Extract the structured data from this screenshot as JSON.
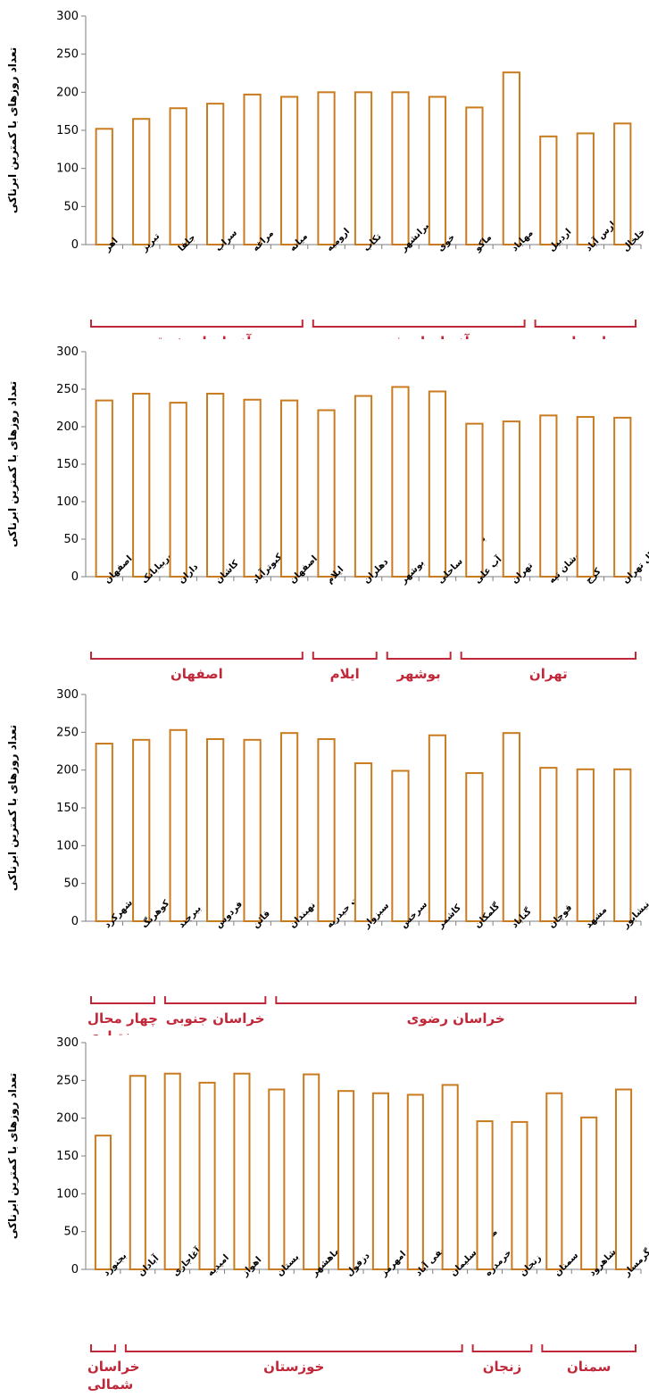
{
  "style": {
    "bar_stroke": "#c97b1f",
    "bar_fill": "#ffffff",
    "group_color": "#c0283a",
    "axis_color": "#7f7f7f"
  },
  "chart_data": [
    {
      "type": "bar",
      "ylabel": "تعداد روزهای با کمترین ابرناکی",
      "ylim": [
        0,
        300
      ],
      "yticks": [
        0,
        50,
        100,
        150,
        200,
        250,
        300
      ],
      "categories": [
        "اهر",
        "تبریز",
        "جلفا",
        "سراب",
        "مراغه",
        "میانه",
        "ارومیه",
        "تکاب",
        "پیرانشهر",
        "خوی",
        "ماکو",
        "مهاباد",
        "اردبیل",
        "پارس آباد",
        "خلخال"
      ],
      "values": [
        152,
        165,
        179,
        185,
        197,
        194,
        200,
        200,
        200,
        194,
        180,
        226,
        142,
        146,
        159
      ],
      "groups": [
        {
          "label": "آذربایجان شرقی",
          "start": 0,
          "end": 5
        },
        {
          "label": "آذربایجان غربی",
          "start": 6,
          "end": 11
        },
        {
          "label": "اردبیل",
          "start": 12,
          "end": 14
        }
      ]
    },
    {
      "type": "bar",
      "ylabel": "تعداد روزهای با کمترین ابرناکی",
      "ylim": [
        0,
        300
      ],
      "yticks": [
        0,
        50,
        100,
        150,
        200,
        250,
        300
      ],
      "categories": [
        "اصفهان",
        "خوربیابانک",
        "داران",
        "کاشان",
        "کبوترآباد",
        "شرق اصفهان",
        "ایلام",
        "دهلران",
        "بوشهر",
        "بوشهر ساحلی",
        "آب علی",
        "تهران",
        "دوشان تپه",
        "کرج",
        "شمال تهران"
      ],
      "values": [
        235,
        244,
        232,
        244,
        236,
        235,
        222,
        241,
        253,
        247,
        204,
        207,
        215,
        213,
        212
      ],
      "groups": [
        {
          "label": "اصفهان",
          "start": 0,
          "end": 5
        },
        {
          "label": "ایلام",
          "start": 6,
          "end": 7
        },
        {
          "label": "بوشهر",
          "start": 8,
          "end": 9
        },
        {
          "label": "تهران",
          "start": 10,
          "end": 14
        }
      ]
    },
    {
      "type": "bar",
      "ylabel": "تعداد روزهای با کمترین ابرناکی",
      "ylim": [
        0,
        300
      ],
      "yticks": [
        0,
        50,
        100,
        150,
        200,
        250,
        300
      ],
      "categories": [
        "شهرکرد",
        "کوهرنگ",
        "بیرجند",
        "فردوس",
        "قائن",
        "نهبندان",
        "تربت حیدریه",
        "سبزوار",
        "سرخس",
        "کاشمر",
        "گلمکان",
        "گناباد",
        "قوچان",
        "مشهد",
        "نیشابور"
      ],
      "values": [
        235,
        240,
        253,
        241,
        240,
        249,
        241,
        209,
        199,
        246,
        196,
        249,
        203,
        201,
        201
      ],
      "groups": [
        {
          "label": "چهار محال",
          "label2": "و بختیاری",
          "start": 0,
          "end": 1
        },
        {
          "label": "خراسان جنوبی",
          "start": 2,
          "end": 4
        },
        {
          "label": "خراسان رضوی",
          "start": 5,
          "end": 14
        }
      ]
    },
    {
      "type": "bar",
      "ylabel": "تعداد روزهای با کمترین ابرناکی",
      "ylim": [
        0,
        300
      ],
      "yticks": [
        0,
        50,
        100,
        150,
        200,
        250,
        300
      ],
      "categories": [
        "بجنورد",
        "آبادان",
        "آغاجاری",
        "امیدیه",
        "اهواز",
        "بستان",
        "بندر ماهشهر",
        "دزفول",
        "رامهرمز",
        "صفی آباد",
        "مسجد سلیمان",
        "خرمدره",
        "زنجان",
        "سمنان",
        "شاهرود",
        "گرمسار"
      ],
      "values": [
        177,
        256,
        259,
        247,
        259,
        238,
        258,
        236,
        233,
        231,
        244,
        196,
        195,
        233,
        201,
        238
      ],
      "groups": [
        {
          "label": "خراسان",
          "label2": "شمالی",
          "start": 0,
          "end": 0
        },
        {
          "label": "خوزستان",
          "start": 1,
          "end": 10
        },
        {
          "label": "زنجان",
          "start": 11,
          "end": 12
        },
        {
          "label": "سمنان",
          "start": 13,
          "end": 15
        }
      ]
    }
  ]
}
